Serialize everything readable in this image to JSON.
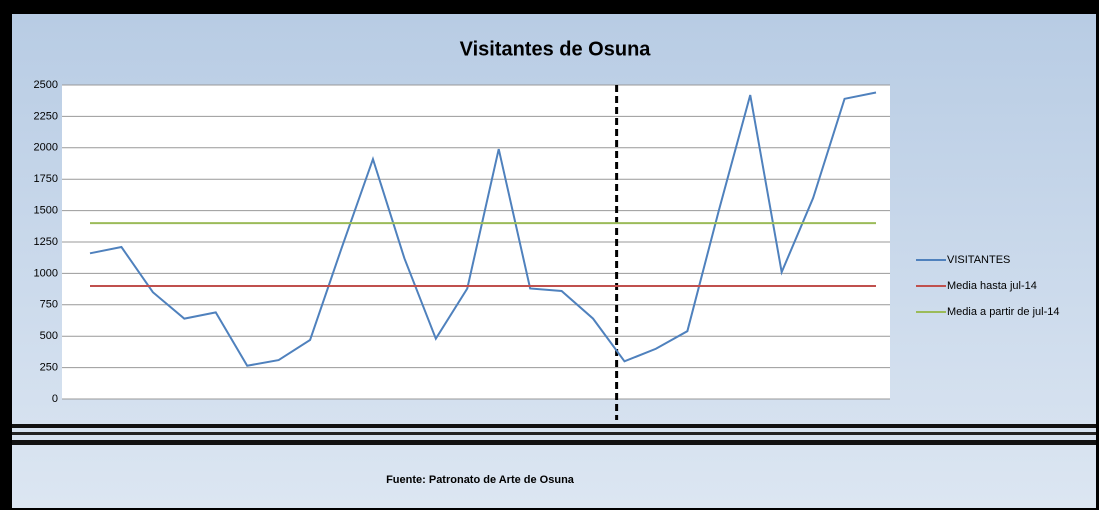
{
  "chart_data": {
    "type": "line",
    "title": "Visitantes de Osuna",
    "source": "Fuente: Patronato de Arte de Osuna",
    "categories": [
      null,
      null,
      null,
      null,
      null,
      null,
      null,
      null,
      null,
      null,
      null,
      null,
      null,
      null,
      null,
      null,
      null,
      null,
      null,
      null,
      null,
      null,
      null,
      null,
      null,
      null
    ],
    "series": [
      {
        "name": "VISITANTES",
        "color": "#4f81bd",
        "values": [
          1160,
          1210,
          850,
          640,
          690,
          265,
          310,
          470,
          1200,
          1910,
          1120,
          480,
          880,
          1990,
          880,
          860,
          640,
          300,
          400,
          540,
          1500,
          2420,
          1010,
          1600,
          2390,
          2440
        ]
      },
      {
        "name": "Media hasta jul-14",
        "color": "#c0504d",
        "values": [
          900,
          900,
          900,
          900,
          900,
          900,
          900,
          900,
          900,
          900,
          900,
          900,
          900,
          900,
          900,
          900,
          900,
          900,
          900,
          900,
          900,
          900,
          900,
          900,
          900,
          900
        ]
      },
      {
        "name": "Media a partir de jul-14",
        "color": "#9bbb59",
        "values": [
          1400,
          1400,
          1400,
          1400,
          1400,
          1400,
          1400,
          1400,
          1400,
          1400,
          1400,
          1400,
          1400,
          1400,
          1400,
          1400,
          1400,
          1400,
          1400,
          1400,
          1400,
          1400,
          1400,
          1400,
          1400,
          1400
        ]
      }
    ],
    "ylim": [
      0,
      2500
    ],
    "yticks": [
      0,
      250,
      500,
      750,
      1000,
      1250,
      1500,
      1750,
      2000,
      2250,
      2500
    ],
    "grid": true,
    "legend": "right"
  }
}
